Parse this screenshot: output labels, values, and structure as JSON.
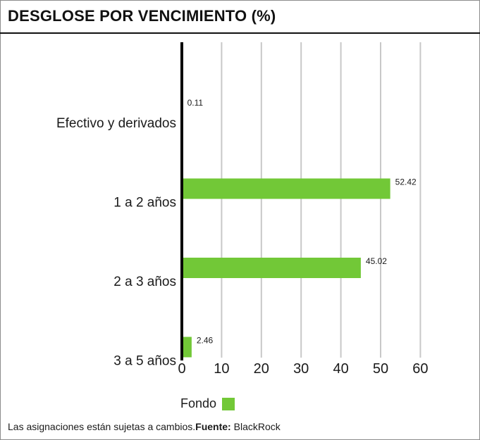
{
  "title": "DESGLOSE POR VENCIMIENTO (%)",
  "colors": {
    "bar": "#72c837",
    "grid": "#c8c8c8",
    "axis": "#000000",
    "text": "#1a1a1a"
  },
  "chart_data": {
    "type": "bar",
    "orientation": "horizontal",
    "categories": [
      "Efectivo y derivados",
      "1 a 2 años",
      "2 a 3 años",
      "3 a 5 años"
    ],
    "series": [
      {
        "name": "Fondo",
        "values": [
          0.11,
          52.42,
          45.02,
          2.46
        ]
      }
    ],
    "data_labels": [
      "0.11",
      "52.42",
      "45.02",
      "2.46"
    ],
    "xlim": [
      0,
      60
    ],
    "xticks": [
      0,
      10,
      20,
      30,
      40,
      50,
      60
    ],
    "xtick_labels": [
      "0",
      "10",
      "20",
      "30",
      "40",
      "50",
      "60"
    ],
    "grid": true,
    "legend_placement": "bottom"
  },
  "legend": {
    "label": "Fondo"
  },
  "footnote": {
    "text": "Las asignaciones están sujetas a cambios.",
    "source_label": "Fuente:",
    "source_value": " BlackRock"
  }
}
